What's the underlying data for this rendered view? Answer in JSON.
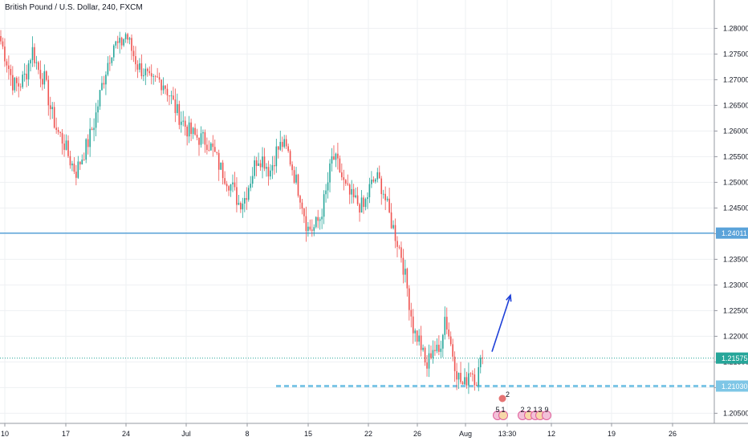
{
  "header": {
    "title": "British Pound / U.S. Dollar, 240, FXCM"
  },
  "colors": {
    "up": "#26a69a",
    "down": "#ef5350",
    "level": "#5ba3d9",
    "dashed": "#7ec6e6",
    "arrow": "#1e40d8",
    "grid": "#eef0f3",
    "border": "#9598a1"
  },
  "chart_data": {
    "type": "candlestick",
    "title": "British Pound / U.S. Dollar, 240, FXCM",
    "ylim": [
      1.2035,
      1.2835
    ],
    "y_ticks": [
      "1.28000",
      "1.27500",
      "1.27000",
      "1.26500",
      "1.26000",
      "1.25500",
      "1.25000",
      "1.24500",
      "1.24000",
      "1.23500",
      "1.23000",
      "1.22500",
      "1.22000",
      "1.21500",
      "1.21000",
      "1.20500"
    ],
    "x_ticks": [
      "10",
      "17",
      "24",
      "Jul",
      "8",
      "15",
      "22",
      "26",
      "Aug",
      "13:30",
      "12",
      "19",
      "26"
    ],
    "price_labels": [
      {
        "name": "horizontal-level",
        "value": 1.24011,
        "label": "1.24011",
        "style": "solid"
      },
      {
        "name": "current-price",
        "value": 1.21575,
        "label": "1.21575",
        "style": "dotted"
      },
      {
        "name": "support-level",
        "value": 1.2103,
        "label": "1.21030",
        "style": "dashed"
      }
    ],
    "arrow": {
      "from": 1.217,
      "to": 1.228
    },
    "events_badges": [
      "2",
      "5",
      "1",
      "2",
      "2",
      "1",
      "3",
      "9"
    ],
    "path": [
      1.2775,
      1.2735,
      1.269,
      1.269,
      1.271,
      1.276,
      1.272,
      1.27,
      1.264,
      1.26,
      1.258,
      1.2545,
      1.252,
      1.255,
      1.258,
      1.262,
      1.268,
      1.273,
      1.277,
      1.2765,
      1.279,
      1.2755,
      1.2725,
      1.2715,
      1.269,
      1.27,
      1.2695,
      1.267,
      1.264,
      1.262,
      1.26,
      1.259,
      1.2585,
      1.258,
      1.256,
      1.253,
      1.251,
      1.249,
      1.246,
      1.247,
      1.251,
      1.255,
      1.2545,
      1.252,
      1.256,
      1.2575,
      1.2555,
      1.251,
      1.247,
      1.241,
      1.241,
      1.243,
      1.248,
      1.255,
      1.253,
      1.249,
      1.247,
      1.246,
      1.245,
      1.249,
      1.251,
      1.249,
      1.244,
      1.24,
      1.236,
      1.229,
      1.221,
      1.219,
      1.2135,
      1.218,
      1.2165,
      1.224,
      1.218,
      1.2125,
      1.21,
      1.214,
      1.2115,
      1.216
    ]
  }
}
